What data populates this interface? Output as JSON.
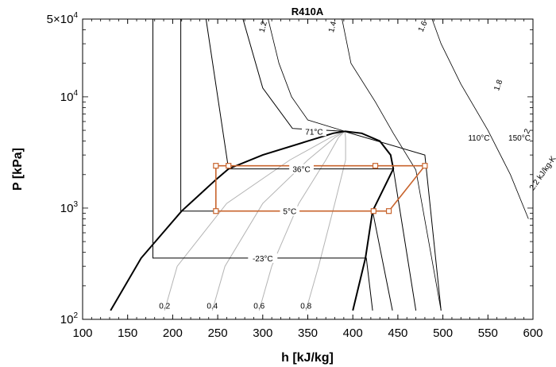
{
  "chart_data": {
    "type": "line",
    "title": "R410A",
    "xlabel": "h [kJ/kg]",
    "ylabel": "P [kPa]",
    "xlim": [
      100,
      600
    ],
    "ylim": [
      100,
      50000
    ],
    "yscale": "log",
    "x_ticks": [
      100,
      150,
      200,
      250,
      300,
      350,
      400,
      450,
      500,
      550,
      600
    ],
    "y_tick_labels": [
      {
        "value": 100,
        "base": "10",
        "exp": "2"
      },
      {
        "value": 1000,
        "base": "10",
        "exp": "3"
      },
      {
        "value": 10000,
        "base": "10",
        "exp": "4"
      },
      {
        "value": 50000,
        "base": "5×10",
        "exp": "4"
      }
    ],
    "saturation_dome": {
      "liquid": [
        [
          131,
          120
        ],
        [
          165,
          355
        ],
        [
          210,
          940
        ],
        [
          248,
          1800
        ],
        [
          262,
          2250
        ],
        [
          300,
          3000
        ],
        [
          350,
          4000
        ],
        [
          378,
          4700
        ],
        [
          391,
          4900
        ]
      ],
      "vapor": [
        [
          391,
          4900
        ],
        [
          410,
          4700
        ],
        [
          430,
          4000
        ],
        [
          442,
          3000
        ],
        [
          445,
          2250
        ],
        [
          422,
          940
        ],
        [
          414,
          355
        ],
        [
          400,
          120
        ]
      ]
    },
    "isotherms": [
      {
        "label": "-23°C",
        "points": [
          [
            178,
            50000
          ],
          [
            178,
            355
          ],
          [
            415,
            355
          ],
          [
            422,
            120
          ]
        ]
      },
      {
        "label": "5°C",
        "points": [
          [
            209,
            50000
          ],
          [
            209,
            940
          ],
          [
            422,
            940
          ],
          [
            444,
            120
          ]
        ]
      },
      {
        "label": "36°C",
        "points": [
          [
            237,
            50000
          ],
          [
            262,
            2250
          ],
          [
            445,
            2250
          ],
          [
            470,
            120
          ]
        ]
      },
      {
        "label": "71°C",
        "points": [
          [
            278,
            50000
          ],
          [
            300,
            12000
          ],
          [
            333,
            5200
          ],
          [
            390,
            4900
          ],
          [
            480,
            3000
          ],
          [
            498,
            120
          ]
        ]
      },
      {
        "label": "110°C",
        "points": []
      },
      {
        "label": "150°C",
        "points": []
      }
    ],
    "quality_lines": [
      {
        "label": "0.2",
        "points": [
          [
            191,
            120
          ],
          [
            205,
            300
          ],
          [
            260,
            1100
          ],
          [
            330,
            2700
          ],
          [
            375,
            4300
          ],
          [
            391,
            4900
          ]
        ]
      },
      {
        "label": "0.4",
        "points": [
          [
            244,
            120
          ],
          [
            258,
            300
          ],
          [
            300,
            1100
          ],
          [
            350,
            2700
          ],
          [
            380,
            4300
          ],
          [
            391,
            4900
          ]
        ]
      },
      {
        "label": "0.6",
        "points": [
          [
            296,
            120
          ],
          [
            310,
            300
          ],
          [
            340,
            1100
          ],
          [
            370,
            2700
          ],
          [
            384,
            4300
          ],
          [
            391,
            4900
          ]
        ]
      },
      {
        "label": "0.8",
        "points": [
          [
            348,
            120
          ],
          [
            362,
            300
          ],
          [
            380,
            1100
          ],
          [
            392,
            2700
          ],
          [
            392,
            4300
          ],
          [
            391,
            4900
          ]
        ]
      }
    ],
    "entropy_lines": [
      {
        "label": "1.2",
        "points": [
          [
            306,
            50000
          ],
          [
            318,
            20000
          ],
          [
            332,
            10000
          ],
          [
            350,
            6200
          ],
          [
            391,
            4900
          ]
        ]
      },
      {
        "label": "1.4",
        "points": [
          [
            388,
            50000
          ],
          [
            398,
            20000
          ],
          [
            425,
            9000
          ],
          [
            445,
            4700
          ],
          [
            470,
            2200
          ],
          [
            498,
            120
          ]
        ]
      },
      {
        "label": "1.6",
        "points": [
          [
            488,
            50000
          ],
          [
            498,
            30000
          ],
          [
            520,
            13000
          ],
          [
            550,
            5000
          ],
          [
            575,
            2000
          ],
          [
            595,
            800
          ]
        ]
      },
      {
        "label": "1.8",
        "points": []
      },
      {
        "label": "2",
        "points": []
      },
      {
        "label": "2.2 kJ/kg-K",
        "points": []
      }
    ],
    "cycle": {
      "points": [
        [
          248,
          2400
        ],
        [
          248,
          940
        ],
        [
          423,
          940
        ],
        [
          440,
          940
        ],
        [
          480,
          2400
        ],
        [
          425,
          2400
        ],
        [
          262,
          2400
        ]
      ],
      "color": "#c8642d"
    },
    "colors": {
      "dome": "#000000",
      "isotherm": "#000000",
      "quality": "#b4b4b4",
      "entropy": "#000000",
      "cycle": "#c8642d"
    }
  }
}
